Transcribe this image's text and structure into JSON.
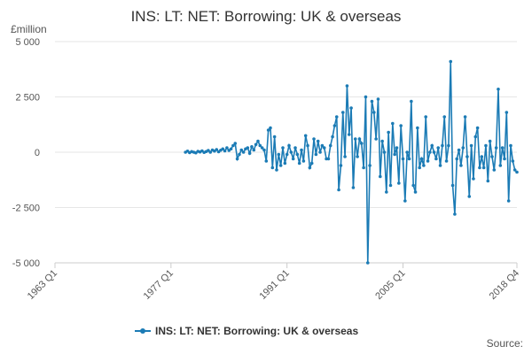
{
  "chart_data": {
    "type": "line",
    "title": "INS: LT: NET: Borrowing: UK & overseas",
    "y_unit": "£million",
    "source": "Source:",
    "categories": [
      "1963 Q1",
      null,
      null,
      null,
      null,
      null,
      null,
      null,
      null,
      null,
      null,
      null,
      null,
      null,
      null,
      null,
      null,
      null,
      null,
      null,
      null,
      null,
      null,
      null,
      null,
      null,
      null,
      null,
      null,
      null,
      null,
      null,
      null,
      null,
      null,
      null,
      null,
      null,
      null,
      null,
      null,
      null,
      null,
      null,
      null,
      null,
      null,
      null,
      null,
      null,
      null,
      null,
      null,
      null,
      null,
      null,
      "1977 Q1",
      null,
      null,
      null,
      null,
      null,
      null,
      null,
      null,
      null,
      null,
      null,
      null,
      null,
      null,
      null,
      null,
      null,
      null,
      null,
      null,
      null,
      null,
      null,
      null,
      null,
      null,
      null,
      null,
      null,
      null,
      null,
      null,
      null,
      null,
      null,
      null,
      null,
      null,
      null,
      null,
      null,
      null,
      null,
      null,
      null,
      null,
      null,
      null,
      null,
      null,
      null,
      null,
      null,
      null,
      null,
      "1991 Q1",
      null,
      null,
      null,
      null,
      null,
      null,
      null,
      null,
      null,
      null,
      null,
      null,
      null,
      null,
      null,
      null,
      null,
      null,
      null,
      null,
      null,
      null,
      null,
      null,
      null,
      null,
      null,
      null,
      null,
      null,
      null,
      null,
      null,
      null,
      null,
      null,
      null,
      null,
      null,
      null,
      null,
      null,
      null,
      null,
      null,
      null,
      null,
      null,
      null,
      null,
      null,
      null,
      null,
      null,
      null,
      "2005 Q1",
      null,
      null,
      null,
      null,
      null,
      null,
      null,
      null,
      null,
      null,
      null,
      null,
      null,
      null,
      null,
      null,
      null,
      null,
      null,
      null,
      null,
      null,
      null,
      null,
      null,
      null,
      null,
      null,
      null,
      null,
      null,
      null,
      null,
      null,
      null,
      null,
      null,
      null,
      null,
      null,
      null,
      null,
      null,
      null,
      null,
      null,
      null,
      null,
      null,
      null,
      null,
      null,
      null,
      null,
      "2018 Q4"
    ],
    "series": [
      {
        "name": "INS: LT: NET: Borrowing: UK & overseas",
        "color": "#1b7bb5",
        "values": [
          null,
          null,
          null,
          null,
          null,
          null,
          null,
          null,
          null,
          null,
          null,
          null,
          null,
          null,
          null,
          null,
          null,
          null,
          null,
          null,
          null,
          null,
          null,
          null,
          null,
          null,
          null,
          null,
          null,
          null,
          null,
          null,
          null,
          null,
          null,
          null,
          null,
          null,
          null,
          null,
          null,
          null,
          null,
          null,
          null,
          null,
          null,
          null,
          null,
          null,
          null,
          null,
          null,
          null,
          null,
          null,
          null,
          null,
          null,
          null,
          null,
          null,
          null,
          0,
          50,
          -20,
          30,
          0,
          -30,
          40,
          10,
          60,
          -10,
          30,
          80,
          0,
          100,
          50,
          120,
          20,
          90,
          150,
          60,
          200,
          80,
          150,
          300,
          400,
          -300,
          -100,
          100,
          0,
          150,
          200,
          -50,
          250,
          100,
          350,
          500,
          300,
          200,
          100,
          -400,
          1000,
          1100,
          -700,
          700,
          -800,
          -100,
          -600,
          200,
          -500,
          -100,
          300,
          0,
          -300,
          200,
          -100,
          -500,
          100,
          -400,
          750,
          300,
          -700,
          -500,
          600,
          -100,
          500,
          0,
          300,
          200,
          -300,
          -300,
          300,
          700,
          1200,
          1600,
          -1700,
          -600,
          1800,
          -200,
          3000,
          800,
          2000,
          -1600,
          600,
          -200,
          600,
          400,
          -700,
          2500,
          -5000,
          -600,
          2300,
          1800,
          600,
          2400,
          -1100,
          500,
          0,
          -1800,
          900,
          -1500,
          1300,
          -100,
          200,
          -1400,
          1200,
          -300,
          -2200,
          0,
          -300,
          2300,
          -1500,
          -1800,
          1100,
          -700,
          -300,
          -600,
          1600,
          -400,
          0,
          300,
          0,
          -300,
          200,
          -600,
          300,
          1600,
          -400,
          300,
          4100,
          -1500,
          -2800,
          -300,
          100,
          -600,
          200,
          1600,
          -200,
          -2000,
          300,
          -1200,
          700,
          1100,
          -700,
          -200,
          -700,
          300,
          -1300,
          500,
          -200,
          -800,
          200,
          2850,
          -600,
          200,
          -300,
          1800,
          -2200,
          300,
          -400,
          -800,
          -900
        ]
      }
    ],
    "ylim": [
      -5000,
      5000
    ],
    "yticks": [
      {
        "value": -5000,
        "label": "-5 000"
      },
      {
        "value": -2500,
        "label": "-2 500"
      },
      0,
      {
        "value": 2500,
        "label": "2 500"
      },
      {
        "value": 5000,
        "label": "5 000"
      }
    ],
    "grid": true
  }
}
